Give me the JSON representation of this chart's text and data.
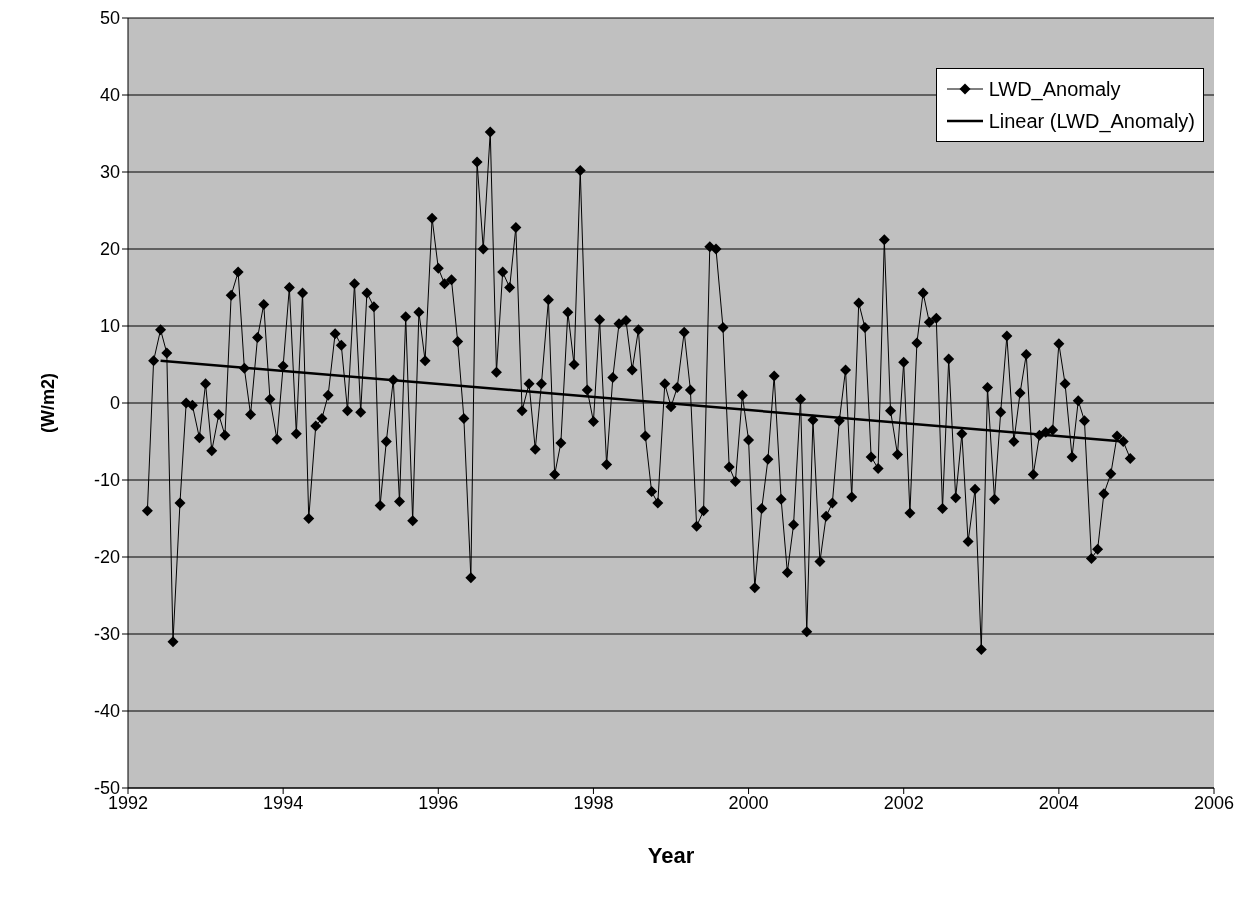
{
  "chart_data": {
    "type": "line",
    "xlabel": "Year",
    "ylabel": "(W/m2)",
    "xlim": [
      1992,
      2006
    ],
    "xticks": [
      1992,
      1994,
      1996,
      1998,
      2000,
      2002,
      2004,
      2006
    ],
    "ylim": [
      -50,
      50
    ],
    "yticks": [
      -50,
      -40,
      -30,
      -20,
      -10,
      0,
      10,
      20,
      30,
      40,
      50
    ],
    "grid": "y",
    "legend": "top right",
    "line_style": "solid",
    "series": [
      {
        "name": "LWD_Anomaly",
        "color": "#000000",
        "marker": "diamond",
        "x": [
          1992.25,
          1992.33,
          1992.42,
          1992.5,
          1992.58,
          1992.67,
          1992.75,
          1992.83,
          1992.92,
          1993.0,
          1993.08,
          1993.17,
          1993.25,
          1993.33,
          1993.42,
          1993.5,
          1993.58,
          1993.67,
          1993.75,
          1993.83,
          1993.92,
          1994.0,
          1994.08,
          1994.17,
          1994.25,
          1994.33,
          1994.42,
          1994.5,
          1994.58,
          1994.67,
          1994.75,
          1994.83,
          1994.92,
          1995.0,
          1995.08,
          1995.17,
          1995.25,
          1995.33,
          1995.42,
          1995.5,
          1995.58,
          1995.67,
          1995.75,
          1995.83,
          1995.92,
          1996.0,
          1996.08,
          1996.17,
          1996.25,
          1996.33,
          1996.42,
          1996.5,
          1996.58,
          1996.67,
          1996.75,
          1996.83,
          1996.92,
          1997.0,
          1997.08,
          1997.17,
          1997.25,
          1997.33,
          1997.42,
          1997.5,
          1997.58,
          1997.67,
          1997.75,
          1997.83,
          1997.92,
          1998.0,
          1998.08,
          1998.17,
          1998.25,
          1998.33,
          1998.42,
          1998.5,
          1998.58,
          1998.67,
          1998.75,
          1998.83,
          1998.92,
          1999.0,
          1999.08,
          1999.17,
          1999.25,
          1999.33,
          1999.42,
          1999.5,
          1999.58,
          1999.67,
          1999.75,
          1999.83,
          1999.92,
          2000.0,
          2000.08,
          2000.17,
          2000.25,
          2000.33,
          2000.42,
          2000.5,
          2000.58,
          2000.67,
          2000.75,
          2000.83,
          2000.92,
          2001.0,
          2001.08,
          2001.17,
          2001.25,
          2001.33,
          2001.42,
          2001.5,
          2001.58,
          2001.67,
          2001.75,
          2001.83,
          2001.92,
          2002.0,
          2002.08,
          2002.17,
          2002.25,
          2002.33,
          2002.42,
          2002.5,
          2002.58,
          2002.67,
          2002.75,
          2002.83,
          2002.92,
          2003.0,
          2003.08,
          2003.17,
          2003.25,
          2003.33,
          2003.42,
          2003.5,
          2003.58,
          2003.67,
          2003.75,
          2003.83,
          2003.92,
          2004.0,
          2004.08,
          2004.17,
          2004.25,
          2004.33,
          2004.42,
          2004.5,
          2004.58,
          2004.67,
          2004.75,
          2004.83,
          2004.92
        ],
        "values": [
          -14,
          5.5,
          9.5,
          6.5,
          -31,
          -13,
          0,
          -0.3,
          -4.5,
          2.5,
          -6.2,
          -1.5,
          -4.2,
          14,
          17,
          4.5,
          -1.5,
          8.5,
          12.8,
          0.5,
          -4.7,
          4.8,
          15,
          -4,
          14.3,
          -15,
          -3,
          -2,
          1,
          9,
          7.5,
          -1,
          15.5,
          -1.2,
          14.3,
          12.5,
          -13.3,
          -5,
          3,
          -12.8,
          11.2,
          -15.3,
          11.8,
          5.5,
          24,
          17.5,
          15.5,
          16,
          8,
          -2,
          -22.7,
          31.3,
          20,
          35.2,
          4,
          17,
          15,
          22.8,
          -1,
          2.5,
          -6,
          2.5,
          13.4,
          -9.3,
          -5.2,
          11.8,
          5,
          30.2,
          1.7,
          -2.4,
          10.8,
          -8,
          3.3,
          10.3,
          10.7,
          4.3,
          9.5,
          -4.3,
          -11.5,
          -13,
          2.5,
          -0.5,
          2,
          9.2,
          1.7,
          -16,
          -14,
          20.3,
          20,
          9.8,
          -8.3,
          -10.2,
          1,
          -4.8,
          -24,
          -13.7,
          -7.3,
          3.5,
          -12.5,
          -22,
          -15.8,
          0.5,
          -29.7,
          -2.2,
          -20.6,
          -14.7,
          -13,
          -2.3,
          4.3,
          -12.2,
          13,
          9.8,
          -7,
          -8.5,
          21.2,
          -1,
          -6.7,
          5.3,
          -14.3,
          7.8,
          14.3,
          10.5,
          11,
          -13.7,
          5.7,
          -12.3,
          -4,
          -18,
          -11.2,
          -32,
          2,
          -12.5,
          -1.2,
          8.7,
          -5,
          1.3,
          6.3,
          -9.3,
          -4.2,
          -3.8,
          -3.5,
          7.7,
          2.5,
          -7,
          0.3,
          -2.3,
          -20.2,
          -19,
          -11.8,
          -9.2,
          -4.3,
          -5,
          -7.2
        ]
      },
      {
        "name": "Linear (LWD_Anomaly)",
        "type": "line",
        "color": "#000000",
        "marker": "none",
        "x": [
          1992.42,
          2004.83
        ],
        "values": [
          5.5,
          -5
        ]
      }
    ]
  }
}
